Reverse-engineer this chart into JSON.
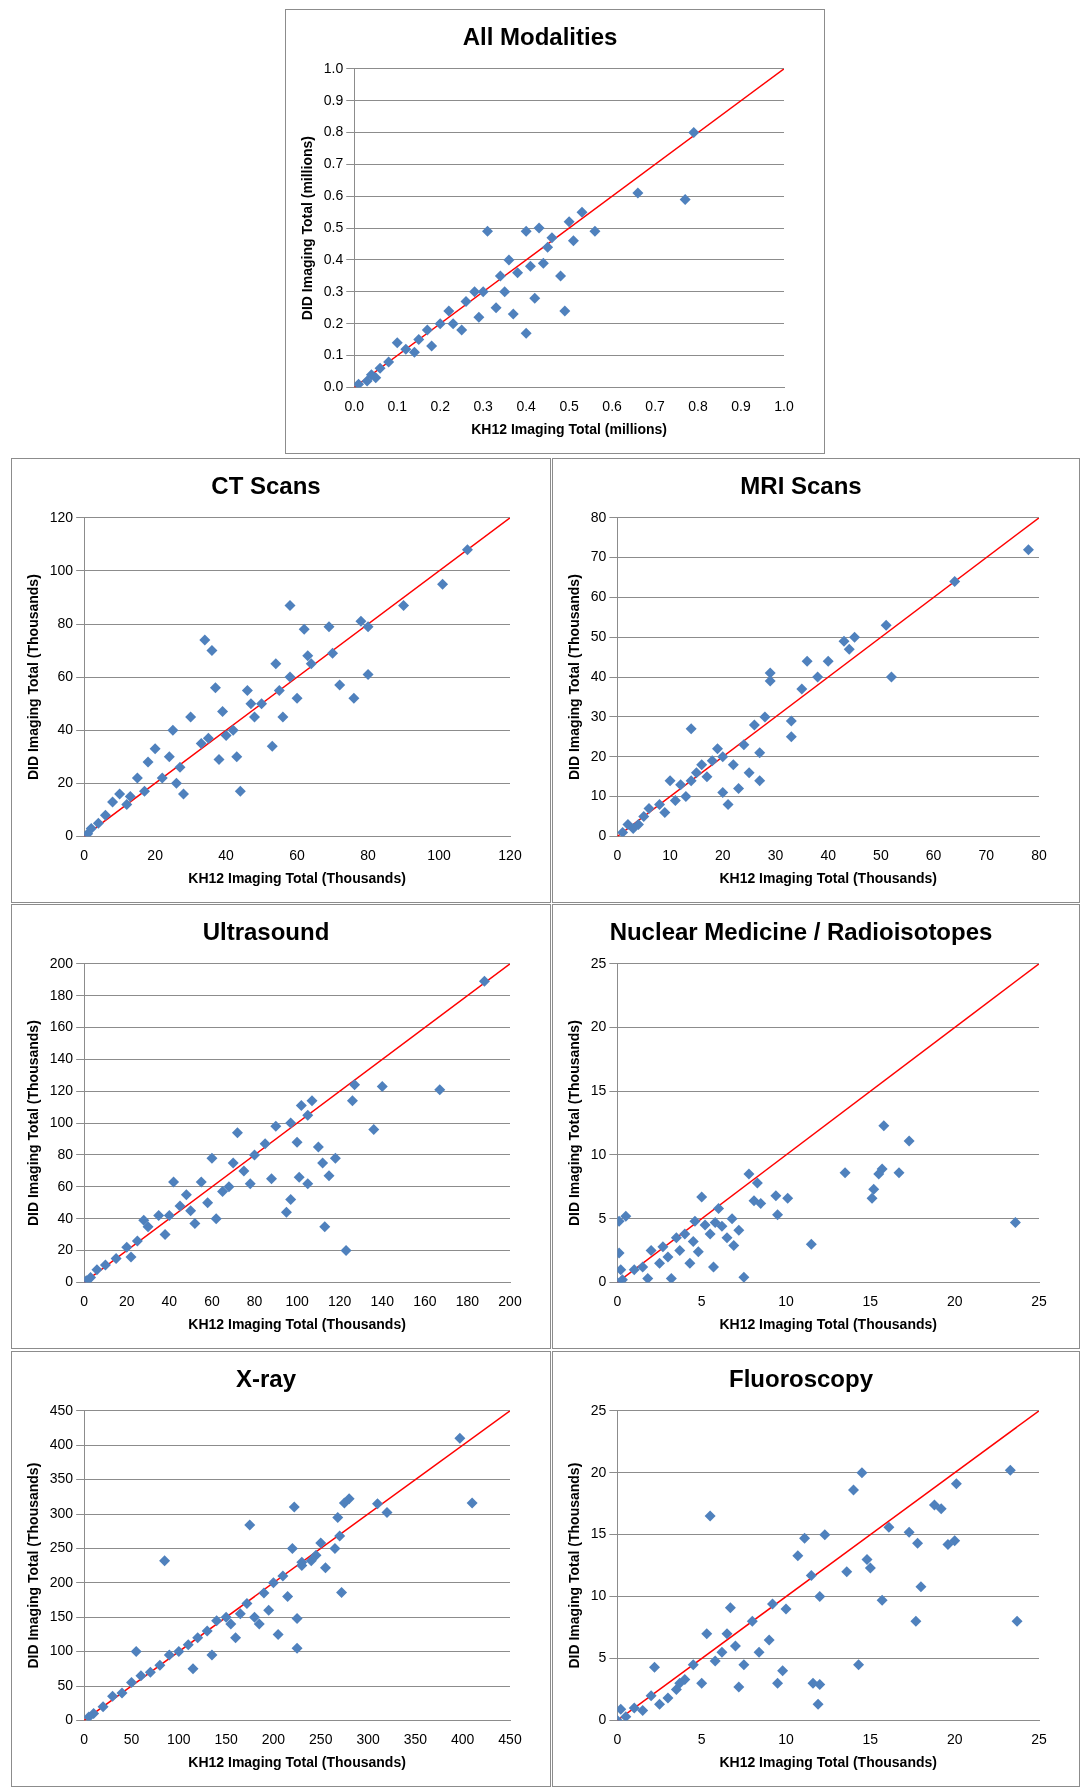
{
  "chart_data": [
    {
      "type": "scatter",
      "title": "All Modalities",
      "xlabel": "KH12 Imaging Total (millions)",
      "ylabel": "DID Imaging Total (millions)",
      "xlim": [
        0,
        1
      ],
      "ylim": [
        0,
        1
      ],
      "xticks": [
        {
          "value": 0,
          "label": "0.0"
        },
        0.1,
        0.2,
        0.3,
        0.4,
        0.5,
        0.6,
        0.7,
        0.8,
        0.9,
        {
          "value": 1,
          "label": "1.0"
        }
      ],
      "yticks": [
        {
          "value": 0,
          "label": "0.0"
        },
        0.1,
        0.2,
        0.3,
        0.4,
        0.5,
        0.6,
        0.7,
        0.8,
        0.9,
        {
          "value": 1,
          "label": "1.0"
        }
      ],
      "grid": "y",
      "legend": false,
      "marker": "diamond",
      "series": [
        {
          "type": "scatter",
          "color": "#4f81bd",
          "x": [
            0.79,
            0.66,
            0.77,
            0.56,
            0.53,
            0.51,
            0.48,
            0.49,
            0.4,
            0.37,
            0.31,
            0.42,
            0.45,
            0.44,
            0.4,
            0.43,
            0.5,
            0.36,
            0.3,
            0.33,
            0.29,
            0.25,
            0.22,
            0.2,
            0.18,
            0.15,
            0.12,
            0.1,
            0.08,
            0.06,
            0.04,
            0.05,
            0.01,
            0.03,
            0.26,
            0.28,
            0.34,
            0.35,
            0.38,
            0.23,
            0.17,
            0.14,
            0.46,
            0.41
          ],
          "values": [
            0.8,
            0.61,
            0.59,
            0.49,
            0.55,
            0.46,
            0.35,
            0.24,
            0.17,
            0.23,
            0.49,
            0.28,
            0.44,
            0.39,
            0.49,
            0.5,
            0.52,
            0.4,
            0.3,
            0.25,
            0.22,
            0.18,
            0.24,
            0.2,
            0.13,
            0.15,
            0.12,
            0.14,
            0.08,
            0.06,
            0.04,
            0.03,
            0.01,
            0.02,
            0.27,
            0.3,
            0.35,
            0.3,
            0.36,
            0.2,
            0.18,
            0.11,
            0.47,
            0.38
          ]
        },
        {
          "type": "line",
          "color": "#ff0000",
          "marker": "none",
          "x": [
            0,
            1
          ],
          "values": [
            0,
            1
          ]
        }
      ]
    },
    {
      "type": "scatter",
      "title": "CT Scans",
      "xlabel": "KH12 Imaging Total (Thousands)",
      "ylabel": "DID Imaging Total (Thousands)",
      "xlim": [
        0,
        120
      ],
      "ylim": [
        0,
        120
      ],
      "xticks": [
        0,
        20,
        40,
        60,
        80,
        100,
        120
      ],
      "yticks": [
        0,
        20,
        40,
        60,
        80,
        100,
        120
      ],
      "grid": "y",
      "legend": false,
      "marker": "diamond",
      "series": [
        {
          "type": "scatter",
          "color": "#4f81bd",
          "x": [
            108,
            101,
            90,
            80,
            78,
            80,
            76,
            72,
            70,
            69,
            62,
            63,
            64,
            58,
            58,
            60,
            54,
            55,
            53,
            50,
            48,
            46,
            44,
            42,
            40,
            38,
            37,
            36,
            34,
            35,
            33,
            30,
            28,
            27,
            25,
            24,
            22,
            20,
            18,
            17,
            15,
            13,
            10,
            8,
            6,
            4,
            2,
            1,
            12,
            26,
            43,
            47,
            56,
            39
          ],
          "values": [
            108,
            95,
            87,
            79,
            81,
            61,
            52,
            57,
            69,
            79,
            78,
            68,
            65,
            87,
            60,
            52,
            65,
            55,
            34,
            50,
            45,
            55,
            17,
            40,
            38,
            29,
            56,
            70,
            74,
            37,
            35,
            45,
            16,
            26,
            40,
            30,
            22,
            33,
            28,
            17,
            22,
            15,
            16,
            13,
            8,
            5,
            3,
            1,
            12,
            20,
            30,
            50,
            45,
            47
          ]
        },
        {
          "type": "line",
          "color": "#ff0000",
          "marker": "none",
          "x": [
            0,
            120
          ],
          "values": [
            0,
            120
          ]
        }
      ]
    },
    {
      "type": "scatter",
      "title": "MRI Scans",
      "xlabel": "KH12 Imaging Total (Thousands)",
      "ylabel": "DID Imaging Total (Thousands)",
      "xlim": [
        0,
        80
      ],
      "ylim": [
        0,
        80
      ],
      "xticks": [
        0,
        10,
        20,
        30,
        40,
        50,
        60,
        70,
        80
      ],
      "yticks": [
        0,
        10,
        20,
        30,
        40,
        50,
        60,
        70,
        80
      ],
      "grid": "y",
      "legend": false,
      "marker": "diamond",
      "series": [
        {
          "type": "scatter",
          "color": "#4f81bd",
          "x": [
            78,
            64,
            52,
            51,
            45,
            44,
            43,
            40,
            38,
            36,
            35,
            33,
            33,
            29,
            29,
            28,
            27,
            27,
            26,
            25,
            24,
            23,
            22,
            21,
            20,
            20,
            18,
            17,
            16,
            14,
            14,
            13,
            12,
            11,
            10,
            9,
            8,
            6,
            5,
            4,
            3,
            2,
            1,
            19,
            15
          ],
          "values": [
            72,
            64,
            40,
            53,
            50,
            47,
            49,
            44,
            40,
            44,
            37,
            29,
            25,
            41,
            39,
            30,
            21,
            14,
            28,
            16,
            23,
            12,
            18,
            8,
            11,
            20,
            19,
            15,
            18,
            27,
            14,
            10,
            13,
            9,
            14,
            6,
            8,
            7,
            5,
            3,
            2,
            3,
            1,
            22,
            16
          ]
        },
        {
          "type": "line",
          "color": "#ff0000",
          "marker": "none",
          "x": [
            0,
            80
          ],
          "values": [
            0,
            80
          ]
        }
      ]
    },
    {
      "type": "scatter",
      "title": "Ultrasound",
      "xlabel": "KH12 Imaging Total (Thousands)",
      "ylabel": "DID Imaging Total (Thousands)",
      "xlim": [
        0,
        200
      ],
      "ylim": [
        0,
        200
      ],
      "xticks": [
        0,
        20,
        40,
        60,
        80,
        100,
        120,
        140,
        160,
        180,
        200
      ],
      "yticks": [
        0,
        20,
        40,
        60,
        80,
        100,
        120,
        140,
        160,
        180,
        200
      ],
      "grid": "y",
      "legend": false,
      "marker": "diamond",
      "series": [
        {
          "type": "scatter",
          "color": "#4f81bd",
          "x": [
            188,
            167,
            140,
            136,
            127,
            126,
            123,
            115,
            113,
            112,
            110,
            107,
            105,
            102,
            101,
            100,
            97,
            97,
            95,
            90,
            88,
            85,
            80,
            78,
            75,
            72,
            70,
            68,
            65,
            62,
            60,
            58,
            55,
            52,
            50,
            48,
            45,
            42,
            40,
            38,
            35,
            30,
            28,
            25,
            22,
            20,
            15,
            10,
            6,
            3,
            1,
            118,
            105
          ],
          "values": [
            189,
            121,
            123,
            96,
            124,
            114,
            20,
            67,
            35,
            75,
            85,
            114,
            105,
            111,
            66,
            88,
            100,
            52,
            44,
            98,
            65,
            87,
            80,
            62,
            70,
            94,
            75,
            60,
            57,
            40,
            78,
            50,
            63,
            37,
            45,
            55,
            48,
            63,
            42,
            30,
            42,
            35,
            39,
            26,
            16,
            22,
            15,
            11,
            8,
            3,
            1,
            78,
            62
          ]
        },
        {
          "type": "line",
          "color": "#ff0000",
          "marker": "none",
          "x": [
            0,
            200
          ],
          "values": [
            0,
            200
          ]
        }
      ]
    },
    {
      "type": "scatter",
      "title": "Nuclear Medicine / Radioisotopes",
      "xlabel": "KH12 Imaging Total (Thousands)",
      "ylabel": "DID Imaging Total (Thousands)",
      "xlim": [
        0,
        25
      ],
      "ylim": [
        0,
        25
      ],
      "xticks": [
        0,
        5,
        10,
        15,
        20,
        25
      ],
      "yticks": [
        0,
        5,
        10,
        15,
        20,
        25
      ],
      "grid": "y",
      "legend": false,
      "marker": "diamond",
      "series": [
        {
          "type": "scatter",
          "color": "#4f81bd",
          "x": [
            23.6,
            17.3,
            16.7,
            15.8,
            15.7,
            15.5,
            15.1,
            15.2,
            13.5,
            11.5,
            10.1,
            9.4,
            9.5,
            8.3,
            8.1,
            7.8,
            7.5,
            7.2,
            6.8,
            6.5,
            6.2,
            6,
            5.7,
            5.5,
            5.2,
            5,
            4.8,
            4.5,
            4.3,
            4,
            3.7,
            3.5,
            3.2,
            3,
            2.7,
            2.5,
            2,
            1.5,
            1,
            0.5,
            0.1,
            0.1,
            0.2,
            0.3,
            0,
            1.8,
            6.9,
            8.5,
            4.6,
            5.8
          ],
          "values": [
            4.7,
            11.1,
            8.6,
            12.3,
            8.9,
            8.5,
            6.6,
            7.3,
            8.6,
            3,
            6.6,
            6.8,
            5.3,
            7.8,
            6.4,
            8.5,
            0.4,
            4.1,
            5,
            3.5,
            4.4,
            5.8,
            1.2,
            3.8,
            4.5,
            6.7,
            2.4,
            3.2,
            1.5,
            3.8,
            2.5,
            3.5,
            0.3,
            2,
            2.8,
            1.5,
            2.5,
            1.2,
            1,
            5.2,
            4.8,
            2.3,
            1,
            0.2,
            0,
            0.3,
            2.9,
            6.2,
            4.8,
            4.7
          ]
        },
        {
          "type": "line",
          "color": "#ff0000",
          "marker": "none",
          "x": [
            0,
            25
          ],
          "values": [
            0,
            25
          ]
        }
      ]
    },
    {
      "type": "scatter",
      "title": "X-ray",
      "xlabel": "KH12 Imaging Total (Thousands)",
      "ylabel": "DID Imaging Total (Thousands)",
      "xlim": [
        0,
        450
      ],
      "ylim": [
        0,
        450
      ],
      "xticks": [
        0,
        50,
        100,
        150,
        200,
        250,
        300,
        350,
        400,
        450
      ],
      "yticks": [
        0,
        50,
        100,
        150,
        200,
        250,
        300,
        350,
        400,
        450
      ],
      "grid": "y",
      "legend": false,
      "marker": "diamond",
      "series": [
        {
          "type": "scatter",
          "color": "#4f81bd",
          "x": [
            397,
            410,
            320,
            310,
            280,
            275,
            272,
            270,
            268,
            265,
            255,
            250,
            240,
            230,
            225,
            225,
            222,
            220,
            215,
            210,
            205,
            200,
            195,
            190,
            185,
            175,
            172,
            165,
            160,
            155,
            150,
            140,
            135,
            130,
            120,
            115,
            110,
            100,
            90,
            85,
            80,
            70,
            60,
            55,
            50,
            40,
            30,
            20,
            10,
            5,
            230,
            245,
            180
          ],
          "values": [
            410,
            316,
            302,
            315,
            322,
            316,
            186,
            268,
            295,
            250,
            222,
            258,
            232,
            225,
            148,
            105,
            310,
            250,
            180,
            210,
            125,
            200,
            160,
            185,
            140,
            284,
            170,
            155,
            120,
            140,
            150,
            145,
            95,
            130,
            120,
            75,
            110,
            100,
            95,
            232,
            80,
            70,
            65,
            100,
            55,
            40,
            35,
            20,
            10,
            5,
            230,
            240,
            150
          ]
        },
        {
          "type": "line",
          "color": "#ff0000",
          "marker": "none",
          "x": [
            0,
            450
          ],
          "values": [
            0,
            450
          ]
        }
      ]
    },
    {
      "type": "scatter",
      "title": "Fluoroscopy",
      "xlabel": "KH12 Imaging Total (Thousands)",
      "ylabel": "DID Imaging Total (Thousands)",
      "xlim": [
        0,
        25
      ],
      "ylim": [
        0,
        25
      ],
      "xticks": [
        0,
        5,
        10,
        15,
        20,
        25
      ],
      "yticks": [
        0,
        5,
        10,
        15,
        20,
        25
      ],
      "grid": "y",
      "legend": false,
      "marker": "diamond",
      "series": [
        {
          "type": "scatter",
          "color": "#4f81bd",
          "x": [
            23.3,
            23.7,
            20.1,
            20,
            19.6,
            19.2,
            18.8,
            18,
            17.7,
            17.8,
            17.3,
            16.1,
            15.7,
            15,
            14.8,
            14.5,
            14,
            14.3,
            13.6,
            12.3,
            12,
            11.9,
            12,
            11.6,
            11.5,
            11.1,
            10.7,
            10,
            9.8,
            9.5,
            9.2,
            9,
            8.4,
            8,
            7.5,
            7.2,
            6.7,
            6.5,
            6.2,
            5.8,
            5.5,
            5.3,
            5,
            4.5,
            4,
            3.5,
            3,
            2.5,
            2.2,
            2,
            1.5,
            1,
            0.5,
            0.2,
            0,
            3.7,
            7
          ],
          "values": [
            20.2,
            8,
            19.1,
            14.5,
            14.2,
            17.1,
            17.4,
            10.8,
            8,
            14.3,
            15.2,
            15.6,
            9.7,
            12.3,
            13,
            20,
            18.6,
            4.5,
            12,
            15,
            10,
            1.3,
            2.9,
            3,
            11.7,
            14.7,
            13.3,
            9,
            4,
            3,
            9.4,
            6.5,
            5.5,
            8,
            4.5,
            2.7,
            9.1,
            7,
            5.5,
            4.8,
            16.5,
            7,
            3,
            4.5,
            3.3,
            2.5,
            1.8,
            1.3,
            4.3,
            2,
            0.8,
            1,
            0.3,
            0.9,
            0,
            3,
            6
          ]
        },
        {
          "type": "line",
          "color": "#ff0000",
          "marker": "none",
          "x": [
            0,
            25
          ],
          "values": [
            0,
            25
          ]
        }
      ]
    }
  ]
}
